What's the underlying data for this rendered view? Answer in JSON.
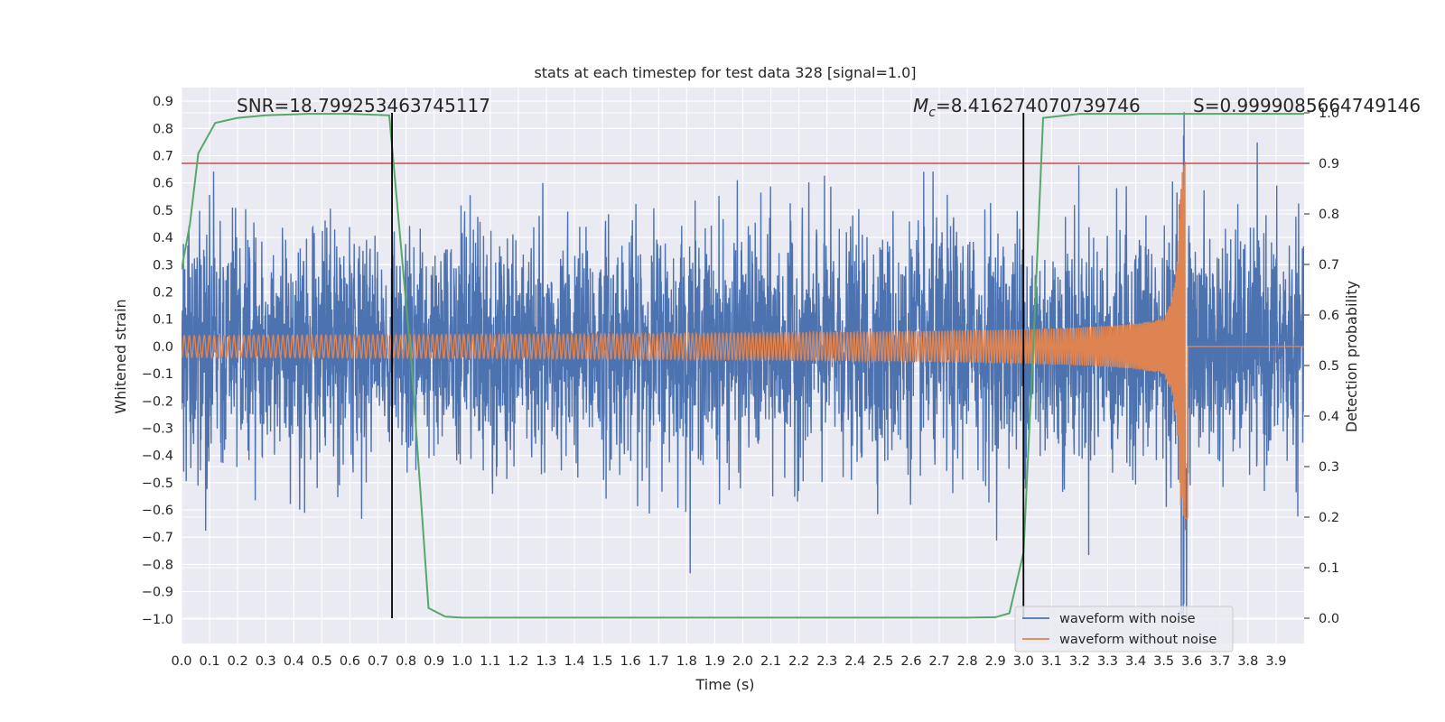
{
  "chart_data": {
    "type": "line",
    "title": "stats at each timestep for test data 328 [signal=1.0]",
    "xlabel": "Time (s)",
    "ylabel": "Whitened strain",
    "y2label": "Detection probability",
    "xlim": [
      0.0,
      4.0
    ],
    "ylim": [
      -1.09,
      0.95
    ],
    "y2lim": [
      -0.05,
      1.05
    ],
    "xticks": [
      "0.0",
      "0.1",
      "0.2",
      "0.3",
      "0.4",
      "0.5",
      "0.6",
      "0.7",
      "0.8",
      "0.9",
      "1.0",
      "1.1",
      "1.2",
      "1.3",
      "1.4",
      "1.5",
      "1.6",
      "1.7",
      "1.8",
      "1.9",
      "2.0",
      "2.1",
      "2.2",
      "2.3",
      "2.4",
      "2.5",
      "2.6",
      "2.7",
      "2.8",
      "2.9",
      "3.0",
      "3.1",
      "3.2",
      "3.3",
      "3.4",
      "3.5",
      "3.6",
      "3.7",
      "3.8",
      "3.9"
    ],
    "yticks": [
      "0.9",
      "0.8",
      "0.7",
      "0.6",
      "0.5",
      "0.4",
      "0.3",
      "0.2",
      "0.1",
      "0.0",
      "−0.1",
      "−0.2",
      "−0.3",
      "−0.4",
      "−0.5",
      "−0.6",
      "−0.7",
      "−0.8",
      "−0.9",
      "−1.0"
    ],
    "y2ticks": [
      "1.0",
      "0.9",
      "0.8",
      "0.7",
      "0.6",
      "0.5",
      "0.4",
      "0.3",
      "0.2",
      "0.1",
      "0.0"
    ],
    "grid": true,
    "legend_placement": "lower-right",
    "annotations": {
      "snr": "SNR=18.799253463745117",
      "mc_symbol": "M",
      "mc_sub": "c",
      "mc_value": "=8.416274070739746",
      "s": "S=0.9999085664749146"
    },
    "threshold_probability": 0.9,
    "vertical_markers_x": [
      0.75,
      3.0
    ],
    "series": [
      {
        "name": "waveform with noise",
        "color": "#4c72b0",
        "description_axis": "left",
        "noise_amplitude": 0.35,
        "sample_rate": 1024
      },
      {
        "name": "waveform without noise",
        "color": "#dd8452",
        "axis": "left",
        "chirp_end_time": 3.58,
        "peak_amplitude": 0.69,
        "start_amplitude": 0.04
      },
      {
        "label": "",
        "color": "#55a868",
        "axis": "right",
        "x": [
          0.0,
          0.03,
          0.06,
          0.12,
          0.2,
          0.3,
          0.45,
          0.6,
          0.74,
          0.82,
          0.88,
          0.94,
          1.0,
          1.2,
          1.6,
          2.0,
          2.4,
          2.8,
          2.9,
          2.95,
          3.0,
          3.04,
          3.07,
          3.2,
          3.6,
          4.0
        ],
        "y": [
          0.69,
          0.78,
          0.92,
          0.98,
          0.99,
          0.995,
          0.998,
          0.998,
          0.995,
          0.5,
          0.02,
          0.003,
          0.001,
          0.001,
          0.001,
          0.001,
          0.001,
          0.001,
          0.002,
          0.01,
          0.13,
          0.6,
          0.99,
          0.998,
          0.998,
          0.998
        ]
      }
    ],
    "colors": {
      "threshold": "#c44e52",
      "markers": "#000000",
      "plot_background": "#eaeaf2",
      "grid": "#ffffff"
    }
  }
}
